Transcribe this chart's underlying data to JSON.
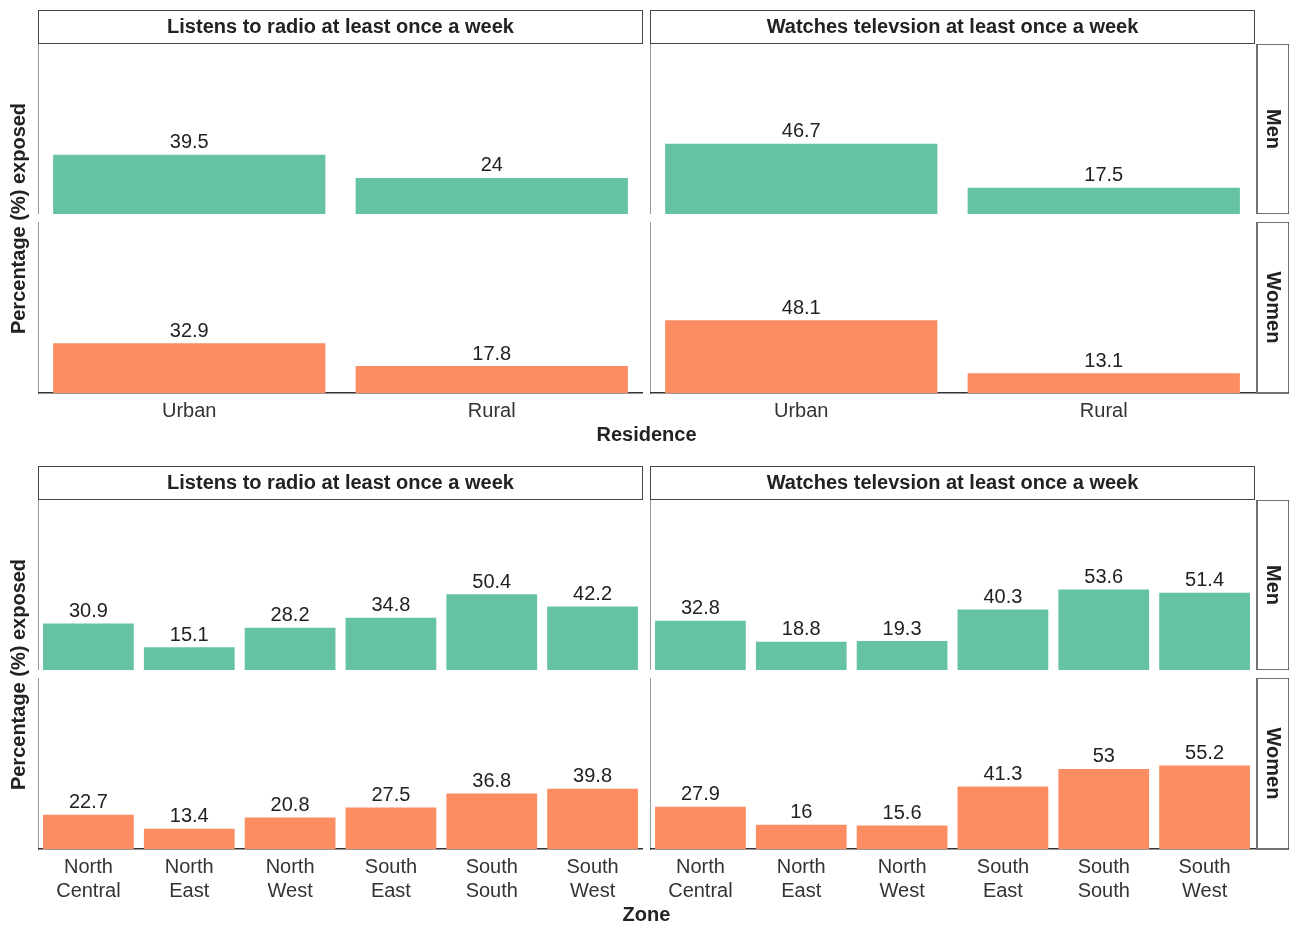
{
  "chart_data": [
    {
      "type": "bar",
      "title": "Listens to radio at least once a week",
      "ylabel": "Percentage (%) exposed",
      "categories": [
        null,
        null
      ],
      "data_labels": true,
      "tick_labels": false,
      "series": [
        {
          "color": "#66c2a5",
          "values": [
            39.5,
            24
          ]
        }
      ]
    },
    {
      "type": "bar",
      "title": "Watches televsion at least once a week",
      "categories": [
        null,
        null
      ],
      "data_labels": true,
      "tick_labels": false,
      "series": [
        {
          "name": "Men",
          "color": "#66c2a5",
          "values": [
            46.7,
            17.5
          ]
        }
      ]
    },
    {
      "type": "bar",
      "xlabel": "Residence",
      "categories": [
        "Urban",
        "Rural"
      ],
      "data_labels": true,
      "tick_labels": "x",
      "series": [
        {
          "color": "#fc8d62",
          "values": [
            32.9,
            17.8
          ]
        }
      ]
    },
    {
      "type": "bar",
      "categories": [
        "Urban",
        "Rural"
      ],
      "data_labels": true,
      "tick_labels": "x",
      "series": [
        {
          "name": "Women",
          "color": "#fc8d62",
          "values": [
            48.1,
            13.1
          ]
        }
      ]
    },
    {
      "type": "bar",
      "title": "Listens to radio at least once a week",
      "ylabel": "Percentage (%) exposed",
      "categories": [
        null,
        null,
        null,
        null,
        null,
        null
      ],
      "data_labels": true,
      "tick_labels": false,
      "series": [
        {
          "color": "#66c2a5",
          "values": [
            30.9,
            15.1,
            28.2,
            34.8,
            50.4,
            42.2
          ]
        }
      ]
    },
    {
      "type": "bar",
      "title": "Watches televsion at least once a week",
      "categories": [
        null,
        null,
        null,
        null,
        null,
        null
      ],
      "data_labels": true,
      "tick_labels": false,
      "series": [
        {
          "name": "Men",
          "color": "#66c2a5",
          "values": [
            32.8,
            18.8,
            19.3,
            40.3,
            53.6,
            51.4
          ]
        }
      ]
    },
    {
      "type": "bar",
      "xlabel": "Zone",
      "categories": [
        "North Central",
        "North East",
        "North West",
        "South East",
        "South South",
        "South West"
      ],
      "data_labels": true,
      "tick_labels": "x",
      "series": [
        {
          "color": "#fc8d62",
          "values": [
            22.7,
            13.4,
            20.8,
            27.5,
            36.8,
            39.8
          ]
        }
      ]
    },
    {
      "type": "bar",
      "categories": [
        "North Central",
        "North East",
        "North West",
        "South East",
        "South South",
        "South West"
      ],
      "data_labels": true,
      "tick_labels": "x",
      "series": [
        {
          "name": "Women",
          "color": "#fc8d62",
          "values": [
            27.9,
            16,
            15.6,
            41.3,
            53,
            55.2
          ]
        }
      ]
    }
  ]
}
